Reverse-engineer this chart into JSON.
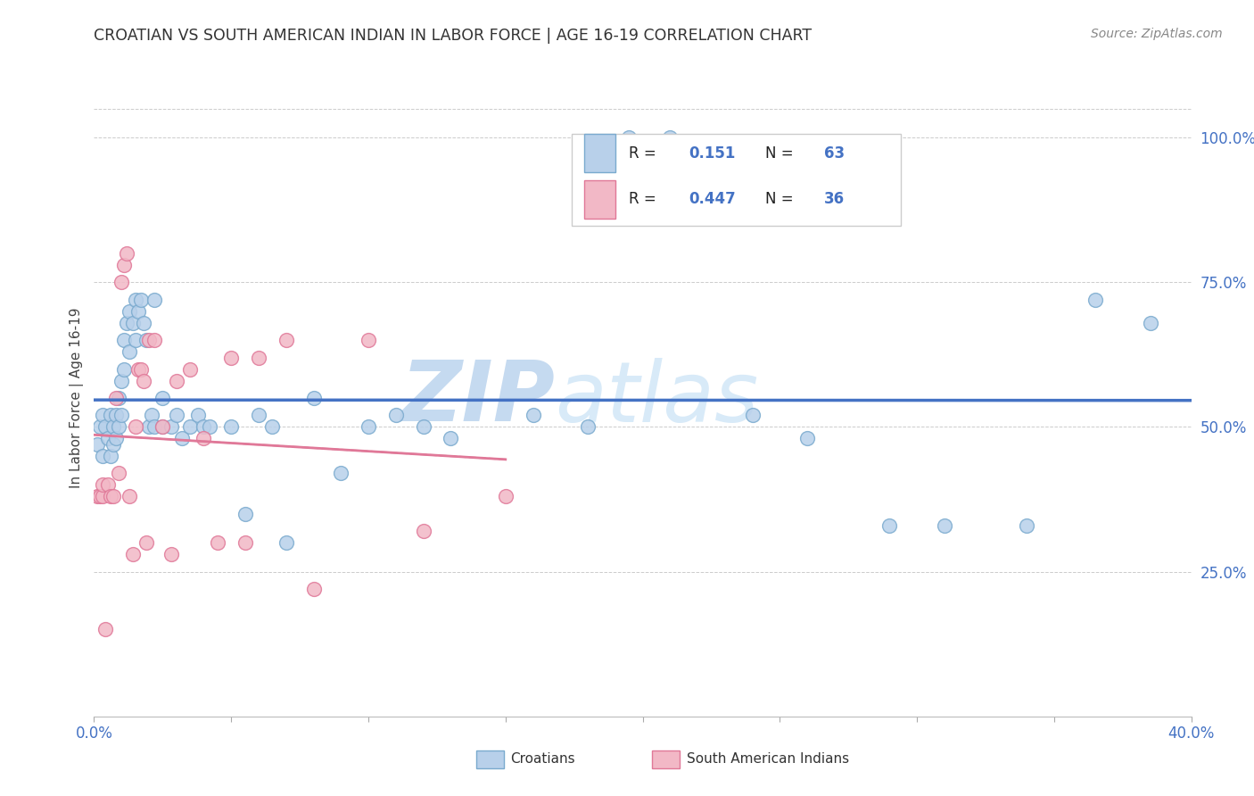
{
  "title": "CROATIAN VS SOUTH AMERICAN INDIAN IN LABOR FORCE | AGE 16-19 CORRELATION CHART",
  "source": "Source: ZipAtlas.com",
  "ylabel": "In Labor Force | Age 16-19",
  "xlim": [
    0.0,
    0.4
  ],
  "ylim": [
    0.0,
    1.1
  ],
  "yticks_right": [
    0.25,
    0.5,
    0.75,
    1.0
  ],
  "ytick_right_labels": [
    "25.0%",
    "50.0%",
    "75.0%",
    "100.0%"
  ],
  "croatian_color": "#b8d0ea",
  "croatian_edge": "#7aaace",
  "sai_color": "#f2b8c6",
  "sai_edge": "#e07898",
  "trend_croatian_color": "#4472c4",
  "trend_sai_color": "#e07898",
  "legend_r_croatian": "0.151",
  "legend_n_croatian": "63",
  "legend_r_sai": "0.447",
  "legend_n_sai": "36",
  "croatian_x": [
    0.001,
    0.002,
    0.003,
    0.003,
    0.004,
    0.005,
    0.006,
    0.006,
    0.007,
    0.007,
    0.008,
    0.008,
    0.009,
    0.009,
    0.01,
    0.01,
    0.011,
    0.011,
    0.012,
    0.013,
    0.013,
    0.014,
    0.015,
    0.015,
    0.016,
    0.017,
    0.018,
    0.019,
    0.02,
    0.021,
    0.022,
    0.022,
    0.025,
    0.025,
    0.028,
    0.03,
    0.032,
    0.035,
    0.038,
    0.04,
    0.042,
    0.05,
    0.055,
    0.06,
    0.065,
    0.07,
    0.08,
    0.09,
    0.1,
    0.11,
    0.12,
    0.13,
    0.16,
    0.18,
    0.195,
    0.21,
    0.24,
    0.26,
    0.29,
    0.31,
    0.34,
    0.365,
    0.385
  ],
  "croatian_y": [
    0.47,
    0.5,
    0.52,
    0.45,
    0.5,
    0.48,
    0.52,
    0.45,
    0.5,
    0.47,
    0.52,
    0.48,
    0.55,
    0.5,
    0.58,
    0.52,
    0.6,
    0.65,
    0.68,
    0.7,
    0.63,
    0.68,
    0.72,
    0.65,
    0.7,
    0.72,
    0.68,
    0.65,
    0.5,
    0.52,
    0.5,
    0.72,
    0.5,
    0.55,
    0.5,
    0.52,
    0.48,
    0.5,
    0.52,
    0.5,
    0.5,
    0.5,
    0.35,
    0.52,
    0.5,
    0.3,
    0.55,
    0.42,
    0.5,
    0.52,
    0.5,
    0.48,
    0.52,
    0.5,
    1.0,
    1.0,
    0.52,
    0.48,
    0.33,
    0.33,
    0.33,
    0.72,
    0.68
  ],
  "sai_x": [
    0.001,
    0.002,
    0.003,
    0.003,
    0.004,
    0.005,
    0.006,
    0.007,
    0.008,
    0.009,
    0.01,
    0.011,
    0.012,
    0.013,
    0.014,
    0.015,
    0.016,
    0.017,
    0.018,
    0.019,
    0.02,
    0.022,
    0.025,
    0.028,
    0.03,
    0.035,
    0.04,
    0.045,
    0.05,
    0.055,
    0.06,
    0.07,
    0.08,
    0.1,
    0.12,
    0.15
  ],
  "sai_y": [
    0.38,
    0.38,
    0.38,
    0.4,
    0.15,
    0.4,
    0.38,
    0.38,
    0.55,
    0.42,
    0.75,
    0.78,
    0.8,
    0.38,
    0.28,
    0.5,
    0.6,
    0.6,
    0.58,
    0.3,
    0.65,
    0.65,
    0.5,
    0.28,
    0.58,
    0.6,
    0.48,
    0.3,
    0.62,
    0.3,
    0.62,
    0.65,
    0.22,
    0.65,
    0.32,
    0.38
  ],
  "background_color": "#ffffff",
  "grid_color": "#cccccc",
  "watermark_zip": "ZIP",
  "watermark_atlas": "atlas",
  "watermark_color": "#cde0f5"
}
